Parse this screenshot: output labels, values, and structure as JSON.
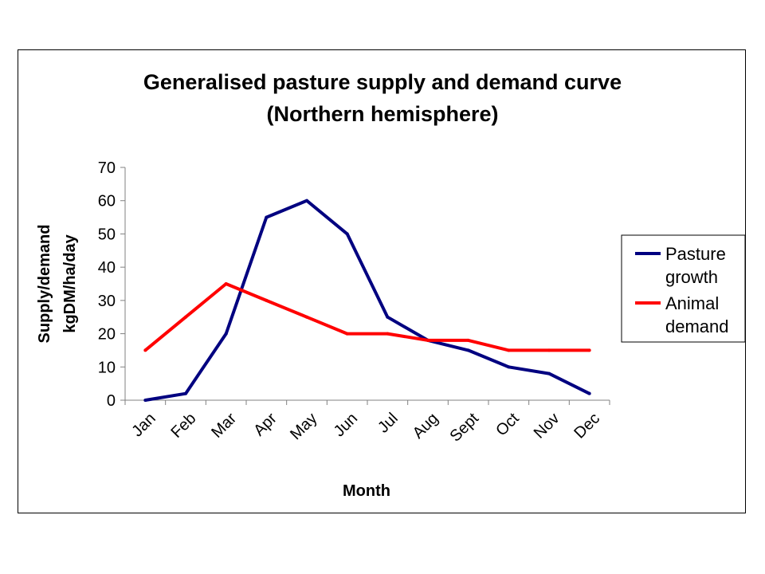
{
  "chart_data": {
    "type": "line",
    "title_line1": "Generalised pasture supply and demand curve",
    "title_line2": "(Northern hemisphere)",
    "xlabel": "Month",
    "ylabel_line1": "Supply/demand",
    "ylabel_line2": "kgDM/ha/day",
    "categories": [
      "Jan",
      "Feb",
      "Mar",
      "Apr",
      "May",
      "Jun",
      "Jul",
      "Aug",
      "Sept",
      "Oct",
      "Nov",
      "Dec"
    ],
    "ylim": [
      0,
      70
    ],
    "yticks": [
      0,
      10,
      20,
      30,
      40,
      50,
      60,
      70
    ],
    "grid": false,
    "legend_position": "right",
    "series": [
      {
        "name_line1": "Pasture",
        "name_line2": "growth",
        "color": "#000080",
        "values": [
          0,
          2,
          20,
          55,
          60,
          50,
          25,
          18,
          15,
          10,
          8,
          2
        ]
      },
      {
        "name_line1": "Animal",
        "name_line2": "demand",
        "color": "#ff0000",
        "values": [
          15,
          25,
          35,
          30,
          25,
          20,
          20,
          18,
          18,
          15,
          15,
          15
        ]
      }
    ]
  }
}
